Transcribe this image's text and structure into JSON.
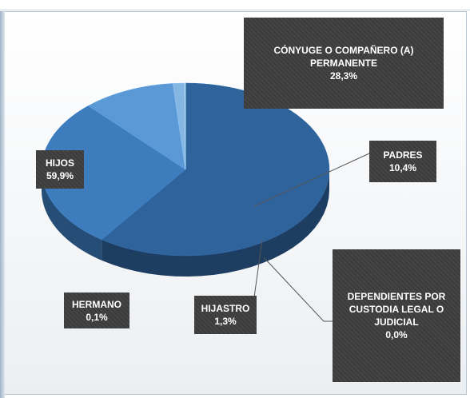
{
  "chart_data": {
    "type": "pie3d",
    "categories": [
      "HIJOS",
      "CÓNYUGE O COMPAÑERO (A) PERMANENTE",
      "PADRES",
      "HIJASTRO",
      "HERMANO",
      "DEPENDIENTES POR CUSTODIA LEGAL O JUDICIAL"
    ],
    "values": [
      59.9,
      28.3,
      10.4,
      1.3,
      0.1,
      0.0
    ],
    "value_labels": [
      "59,9%",
      "28,3%",
      "10,4%",
      "1,3%",
      "0,1%",
      "0,0%"
    ],
    "colors": [
      "#2f639c",
      "#3d7cbd",
      "#5a98d6",
      "#86b6e2",
      "#9cc3e8",
      "#b0d0ee"
    ]
  }
}
